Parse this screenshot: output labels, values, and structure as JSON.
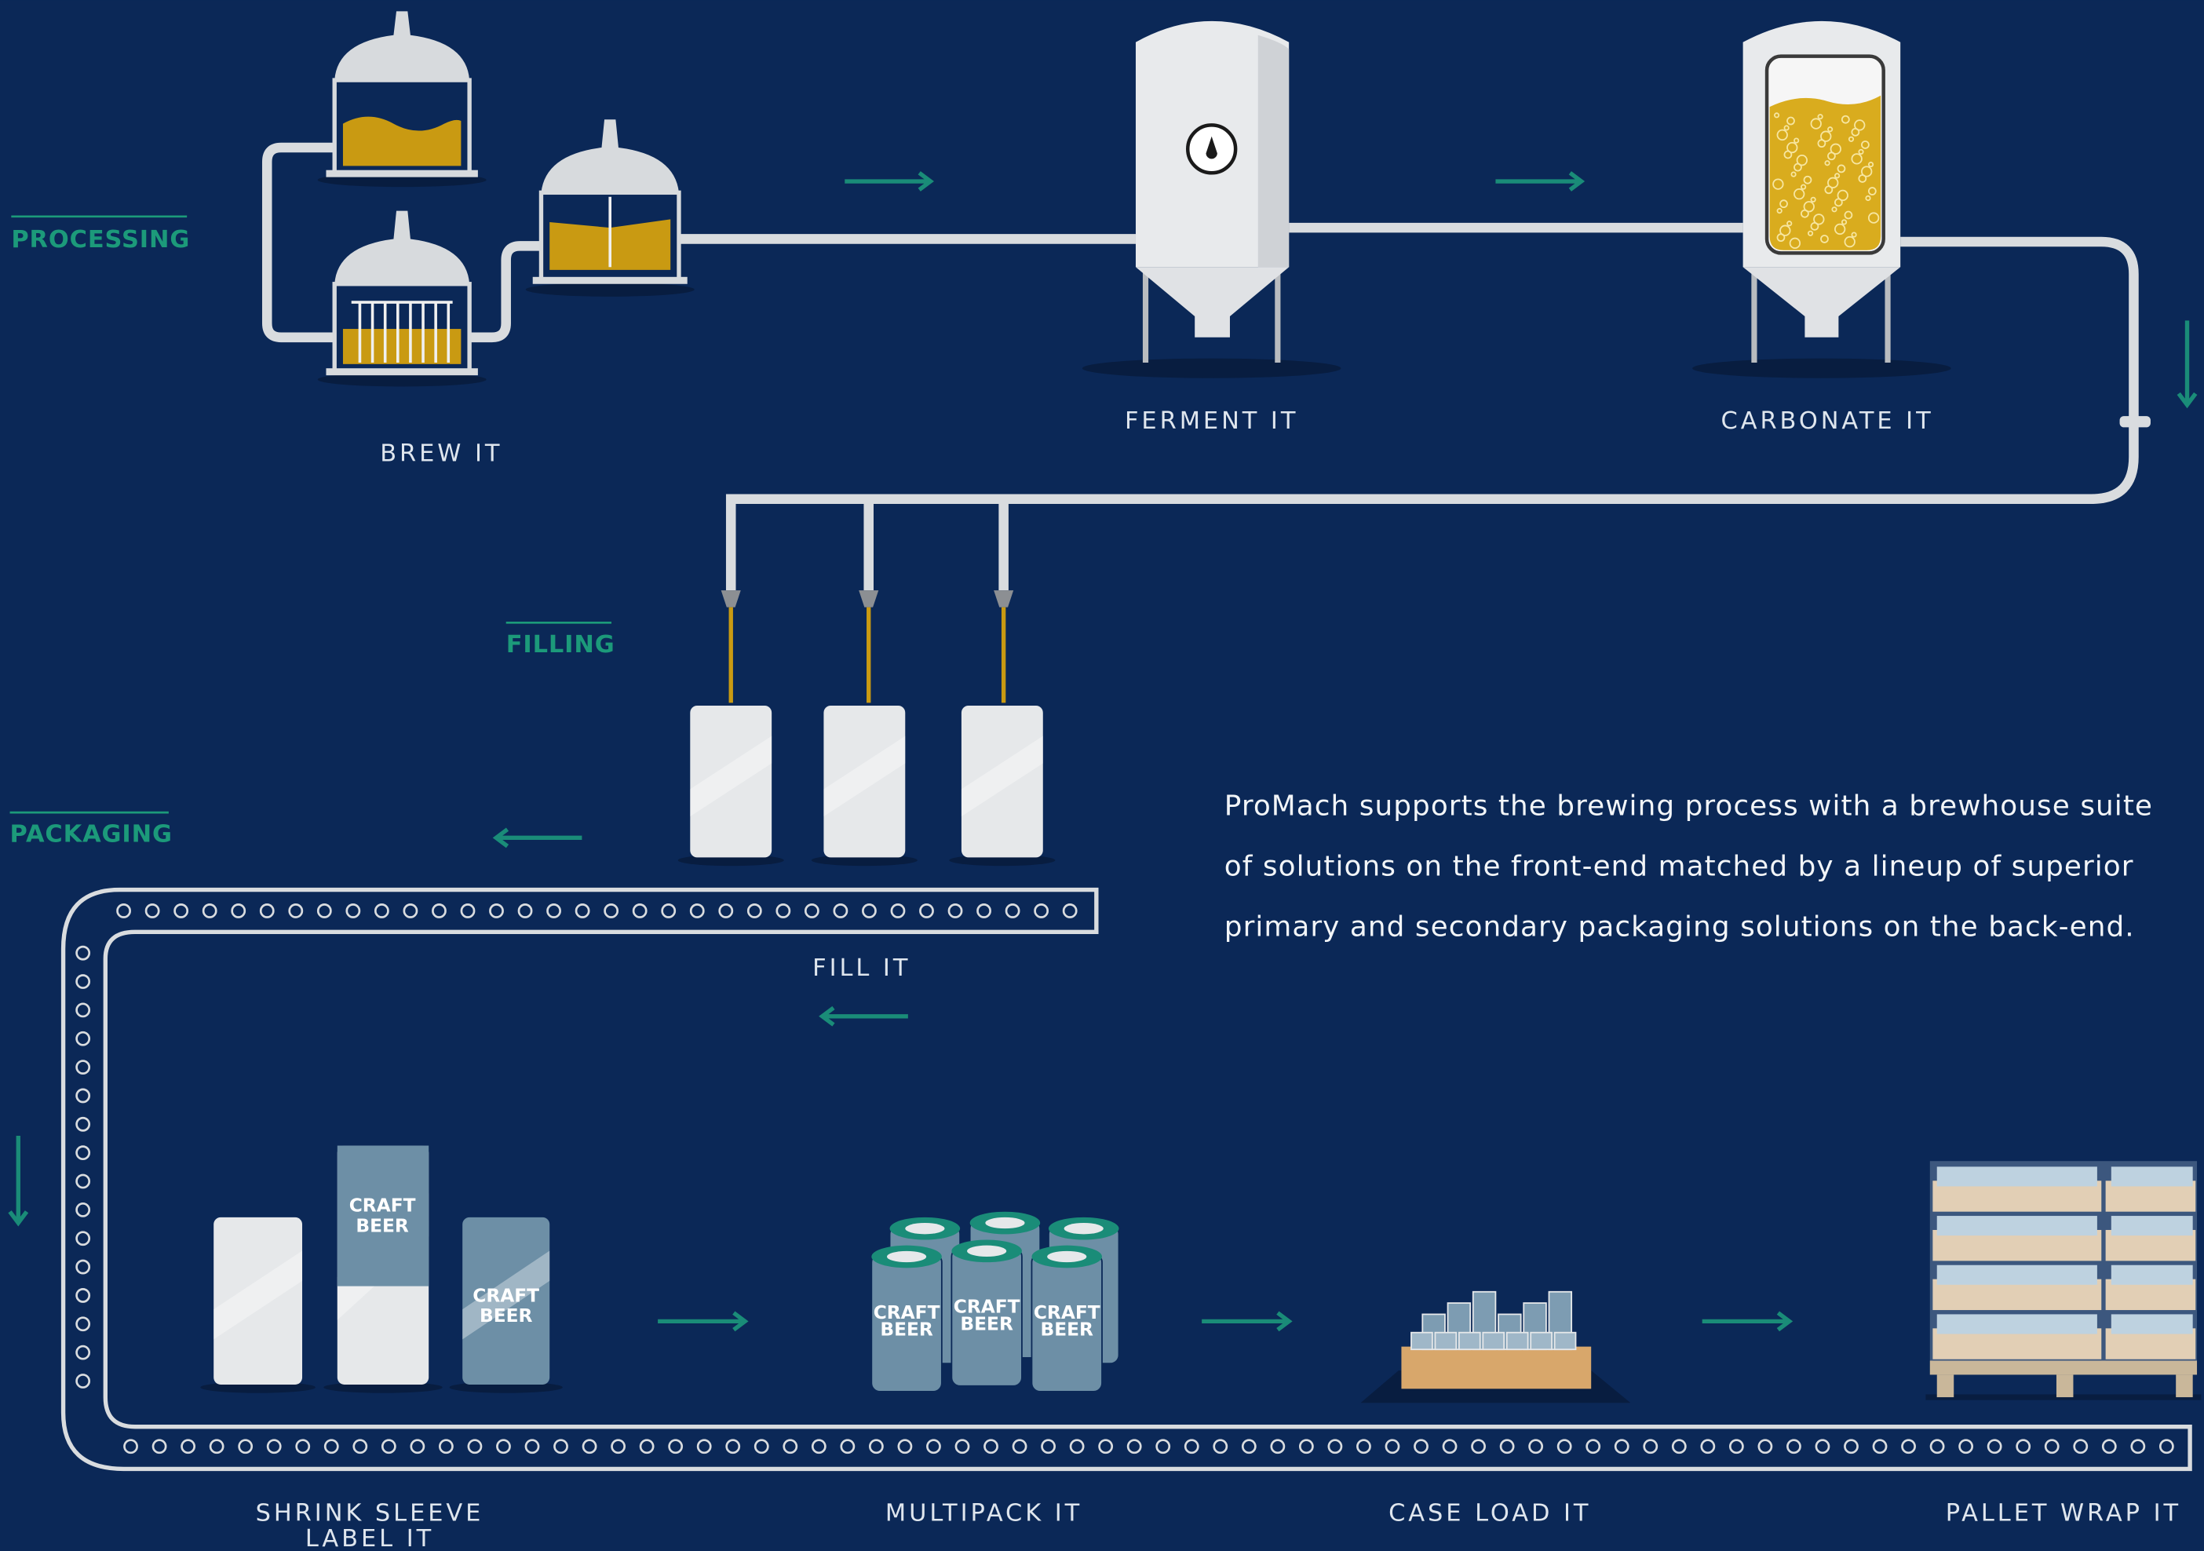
{
  "sections": [
    "PROCESSING",
    "FILLING",
    "PACKAGING"
  ],
  "steps": [
    {
      "lines": [
        "BREW IT"
      ]
    },
    {
      "lines": [
        "FERMENT IT"
      ]
    },
    {
      "lines": [
        "CARBONATE IT"
      ]
    },
    {
      "lines": [
        "FILL IT"
      ]
    },
    {
      "lines": [
        "SHRINK SLEEVE",
        "LABEL IT"
      ]
    },
    {
      "lines": [
        "MULTIPACK IT"
      ]
    },
    {
      "lines": [
        "CASE LOAD IT"
      ]
    },
    {
      "lines": [
        "PALLET WRAP IT"
      ]
    }
  ],
  "description": [
    "ProMach supports the brewing process with a brewhouse suite",
    "of solutions on the front-end matched by a lineup of superior",
    "primary and secondary packaging solutions on the back-end."
  ],
  "can_label": [
    "CRAFT",
    "BEER"
  ]
}
